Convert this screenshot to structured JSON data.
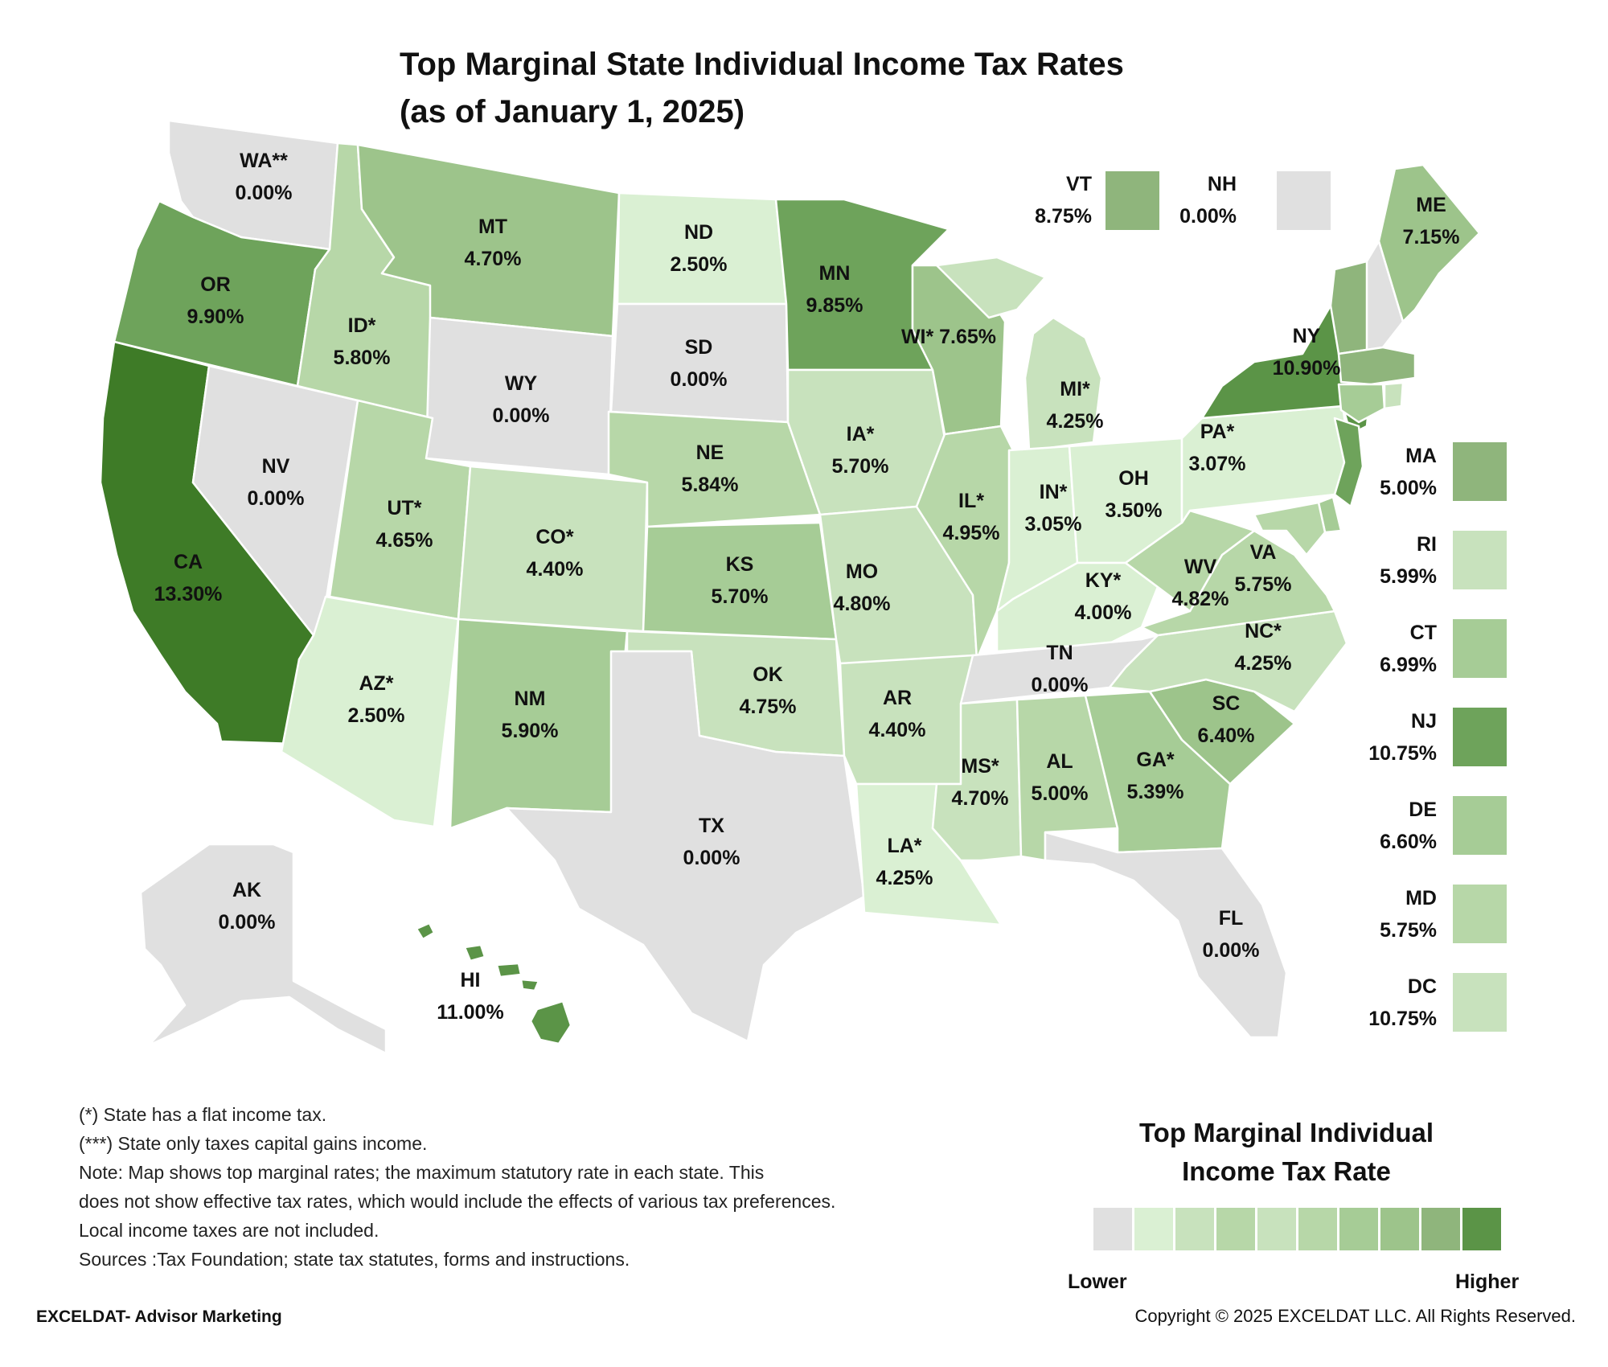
{
  "title_line1": "Top Marginal State Individual Income Tax Rates",
  "title_line2": "(as of January 1, 2025)",
  "colors": {
    "zero": "#e0e0e0",
    "c1": "#daf0d3",
    "c2": "#c8e2bd",
    "c3": "#b7d7a8",
    "c4": "#a6cc96",
    "c5": "#9dc48b",
    "c6": "#8fb57c",
    "c7": "#6ea35b",
    "c8": "#5b9447",
    "c9": "#3e7b27",
    "border": "#ffffff"
  },
  "states": [
    {
      "code": "WA",
      "label": "WA**",
      "rate": "0.00%",
      "color": "zero"
    },
    {
      "code": "OR",
      "label": "OR",
      "rate": "9.90%",
      "color": "c7"
    },
    {
      "code": "CA",
      "label": "CA",
      "rate": "13.30%",
      "color": "c9"
    },
    {
      "code": "NV",
      "label": "NV",
      "rate": "0.00%",
      "color": "zero"
    },
    {
      "code": "ID",
      "label": "ID*",
      "rate": "5.80%",
      "color": "c3"
    },
    {
      "code": "MT",
      "label": "MT",
      "rate": "4.70%",
      "color": "c5"
    },
    {
      "code": "WY",
      "label": "WY",
      "rate": "0.00%",
      "color": "zero"
    },
    {
      "code": "UT",
      "label": "UT*",
      "rate": "4.65%",
      "color": "c3"
    },
    {
      "code": "AZ",
      "label": "AZ*",
      "rate": "2.50%",
      "color": "c1"
    },
    {
      "code": "CO",
      "label": "CO*",
      "rate": "4.40%",
      "color": "c2"
    },
    {
      "code": "NM",
      "label": "NM",
      "rate": "5.90%",
      "color": "c4"
    },
    {
      "code": "ND",
      "label": "ND",
      "rate": "2.50%",
      "color": "c1"
    },
    {
      "code": "SD",
      "label": "SD",
      "rate": "0.00%",
      "color": "zero"
    },
    {
      "code": "NE",
      "label": "NE",
      "rate": "5.84%",
      "color": "c3"
    },
    {
      "code": "KS",
      "label": "KS",
      "rate": "5.70%",
      "color": "c4"
    },
    {
      "code": "OK",
      "label": "OK",
      "rate": "4.75%",
      "color": "c2"
    },
    {
      "code": "TX",
      "label": "TX",
      "rate": "0.00%",
      "color": "zero"
    },
    {
      "code": "MN",
      "label": "MN",
      "rate": "9.85%",
      "color": "c7"
    },
    {
      "code": "IA",
      "label": "IA*",
      "rate": "5.70%",
      "color": "c2"
    },
    {
      "code": "MO",
      "label": "MO",
      "rate": "4.80%",
      "color": "c2"
    },
    {
      "code": "AR",
      "label": "AR",
      "rate": "4.40%",
      "color": "c2"
    },
    {
      "code": "LA",
      "label": "LA*",
      "rate": "4.25%",
      "color": "c1"
    },
    {
      "code": "WI",
      "label": "WI* 7.65%",
      "rate": "",
      "color": "c5"
    },
    {
      "code": "IL",
      "label": "IL*",
      "rate": "4.95%",
      "color": "c3"
    },
    {
      "code": "MI",
      "label": "MI*",
      "rate": "4.25%",
      "color": "c2"
    },
    {
      "code": "IN",
      "label": "IN*",
      "rate": "3.05%",
      "color": "c1"
    },
    {
      "code": "OH",
      "label": "OH",
      "rate": "3.50%",
      "color": "c1"
    },
    {
      "code": "KY",
      "label": "KY*",
      "rate": "4.00%",
      "color": "c1"
    },
    {
      "code": "TN",
      "label": "TN",
      "rate": "0.00%",
      "color": "zero"
    },
    {
      "code": "MS",
      "label": "MS*",
      "rate": "4.70%",
      "color": "c2"
    },
    {
      "code": "AL",
      "label": "AL",
      "rate": "5.00%",
      "color": "c3"
    },
    {
      "code": "GA",
      "label": "GA*",
      "rate": "5.39%",
      "color": "c4"
    },
    {
      "code": "FL",
      "label": "FL",
      "rate": "0.00%",
      "color": "zero"
    },
    {
      "code": "SC",
      "label": "SC",
      "rate": "6.40%",
      "color": "c5"
    },
    {
      "code": "NC",
      "label": "NC*",
      "rate": "4.25%",
      "color": "c2"
    },
    {
      "code": "VA",
      "label": "VA",
      "rate": "5.75%",
      "color": "c3"
    },
    {
      "code": "WV",
      "label": "WV",
      "rate": "4.82%",
      "color": "c3"
    },
    {
      "code": "PA",
      "label": "PA*",
      "rate": "3.07%",
      "color": "c1"
    },
    {
      "code": "NY",
      "label": "NY",
      "rate": "10.90%",
      "color": "c8"
    },
    {
      "code": "ME",
      "label": "ME",
      "rate": "7.15%",
      "color": "c5"
    },
    {
      "code": "AK",
      "label": "AK",
      "rate": "0.00%",
      "color": "zero"
    },
    {
      "code": "HI",
      "label": "HI",
      "rate": "11.00%",
      "color": "c8"
    }
  ],
  "callouts": [
    {
      "code": "VT",
      "label": "VT",
      "rate": "8.75%",
      "color": "c6"
    },
    {
      "code": "NH",
      "label": "NH",
      "rate": "0.00%",
      "color": "zero"
    }
  ],
  "side_legend": [
    {
      "code": "MA",
      "label": "MA",
      "rate": "5.00%",
      "color": "c6"
    },
    {
      "code": "RI",
      "label": "RI",
      "rate": "5.99%",
      "color": "c2"
    },
    {
      "code": "CT",
      "label": "CT",
      "rate": "6.99%",
      "color": "c4"
    },
    {
      "code": "NJ",
      "label": "NJ",
      "rate": "10.75%",
      "color": "c7"
    },
    {
      "code": "DE",
      "label": "DE",
      "rate": "6.60%",
      "color": "c4"
    },
    {
      "code": "MD",
      "label": "MD",
      "rate": "5.75%",
      "color": "c3"
    },
    {
      "code": "DC",
      "label": "DC",
      "rate": "10.75%",
      "color": "c2"
    }
  ],
  "notes": [
    "(*) State has a flat income tax.",
    "(***) State only taxes capital gains income.",
    "Note: Map shows top marginal rates; the maximum statutory rate in each state. This",
    "does not show effective tax rates, which would include the effects of various tax preferences.",
    "Local income taxes are not included.",
    "Sources :Tax Foundation; state tax statutes, forms and instructions."
  ],
  "legend": {
    "title_line1": "Top Marginal Individual",
    "title_line2": "Income Tax Rate",
    "scale": [
      "zero",
      "c1",
      "c2",
      "c3",
      "c2",
      "c3",
      "c4",
      "c5",
      "c6",
      "c8"
    ],
    "low": "Lower",
    "high": "Higher"
  },
  "footer": {
    "left": "EXCELDAT- Advisor Marketing",
    "right": "Copyright © 2025 EXCELDAT LLC. All Rights Reserved."
  }
}
